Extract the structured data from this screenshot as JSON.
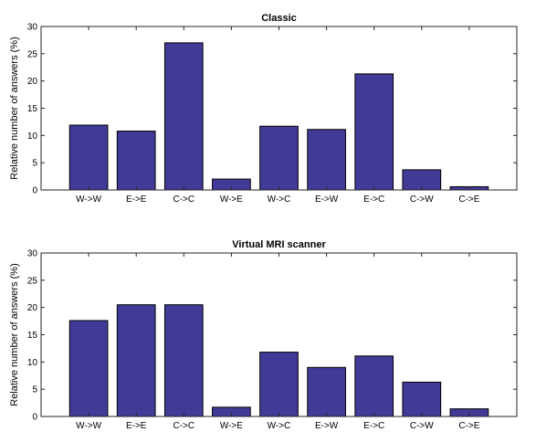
{
  "colors": {
    "bar": "#413a97"
  },
  "chart_data": [
    {
      "type": "bar",
      "title": "Classic",
      "ylabel": "Relative number of answers (%)",
      "xlabel": "",
      "ylim": [
        0,
        30
      ],
      "yticks": [
        "0",
        "5",
        "10",
        "15",
        "20",
        "25",
        "30"
      ],
      "categories": [
        "W->W",
        "E->E",
        "C->C",
        "W->E",
        "W->C",
        "E->W",
        "E->C",
        "C->W",
        "C->E"
      ],
      "values": [
        11.9,
        10.8,
        27.0,
        2.0,
        11.7,
        11.1,
        21.3,
        3.7,
        0.6
      ],
      "grid": false,
      "legend": "none"
    },
    {
      "type": "bar",
      "title": "Virtual MRI scanner",
      "ylabel": "Relative number of answers (%)",
      "xlabel": "",
      "ylim": [
        0,
        30
      ],
      "yticks": [
        "0",
        "5",
        "10",
        "15",
        "20",
        "25",
        "30"
      ],
      "categories": [
        "W->W",
        "E->E",
        "C->C",
        "W->E",
        "W->C",
        "E->W",
        "E->C",
        "C->W",
        "C->E"
      ],
      "values": [
        17.6,
        20.5,
        20.5,
        1.7,
        11.8,
        9.0,
        11.1,
        6.3,
        1.4
      ],
      "grid": false,
      "legend": "none"
    }
  ]
}
